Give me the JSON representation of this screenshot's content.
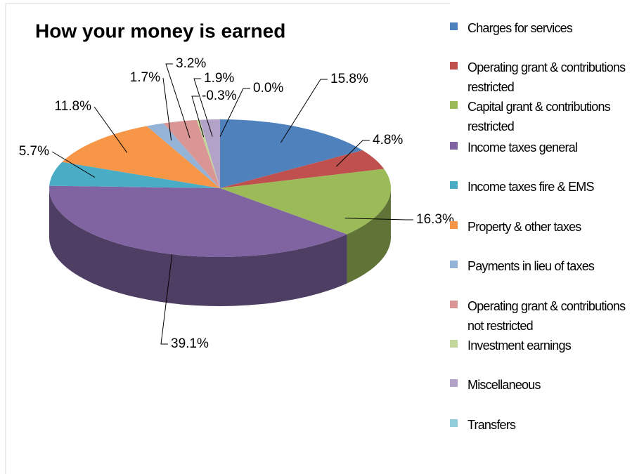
{
  "chart_data": {
    "type": "pie",
    "title": "How your money is earned",
    "categories": [
      "Charges for services",
      "Operating grant & contributions restricted",
      "Capital grant & contributions restricted",
      "Income taxes general",
      "Income taxes fire & EMS",
      "Property & other taxes",
      "Payments in lieu of taxes",
      "Operating grant & contributions not restricted",
      "Investment earnings",
      "Miscellaneous",
      "Transfers"
    ],
    "values": [
      15.8,
      4.8,
      16.3,
      39.1,
      5.7,
      11.8,
      1.7,
      3.2,
      -0.3,
      1.9,
      0.0
    ],
    "value_labels": [
      "15.8%",
      "4.8%",
      "16.3%",
      "39.1%",
      "5.7%",
      "11.8%",
      "1.7%",
      "3.2%",
      "-0.3%",
      "1.9%",
      "0.0%"
    ],
    "colors": [
      "#4f81bd",
      "#c0504d",
      "#9bbb59",
      "#8064a2",
      "#4bacc6",
      "#f79646",
      "#95b3d7",
      "#d99694",
      "#c3d69b",
      "#b3a2c7",
      "#92cddc"
    ],
    "legend": "right"
  }
}
